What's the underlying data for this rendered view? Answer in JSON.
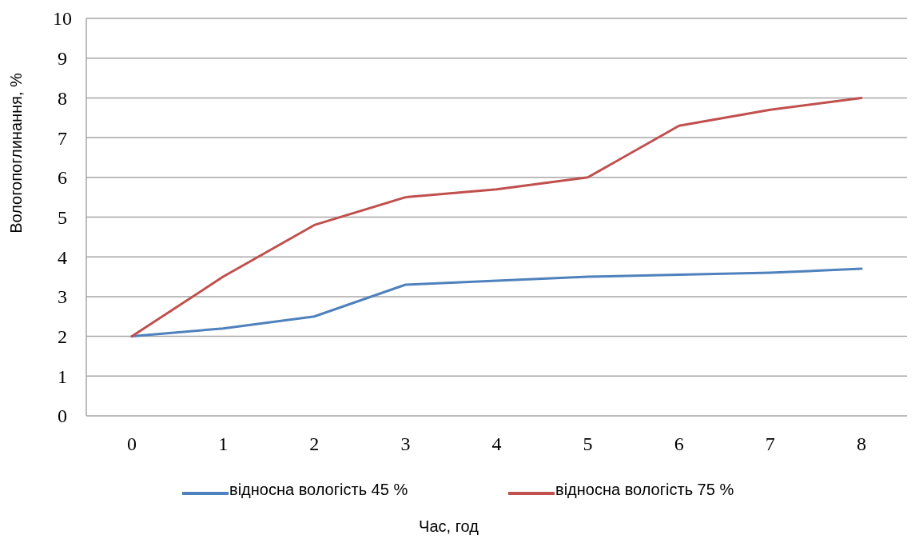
{
  "chart_data": {
    "type": "line",
    "xlabel": "Час, год",
    "ylabel": "Вологопоглинання, %",
    "categories": [
      "0",
      "1",
      "2",
      "3",
      "4",
      "5",
      "6",
      "7",
      "8"
    ],
    "series": [
      {
        "name": "відносна вологість 45 %",
        "color": "#4f81bd",
        "values": [
          2,
          2.2,
          2.5,
          3.3,
          3.4,
          3.5,
          3.55,
          3.6,
          3.7
        ]
      },
      {
        "name": "відносна вологість 75 %",
        "color": "#c0504d",
        "values": [
          2,
          3.5,
          4.8,
          5.5,
          5.7,
          6,
          7.3,
          7.7,
          8
        ]
      }
    ],
    "ylim": [
      0,
      10
    ],
    "yticks": [
      0,
      1,
      2,
      3,
      4,
      5,
      6,
      7,
      8,
      9,
      10
    ],
    "grid": "y",
    "legend": "bottom",
    "marker": "none",
    "line_style": "solid"
  }
}
